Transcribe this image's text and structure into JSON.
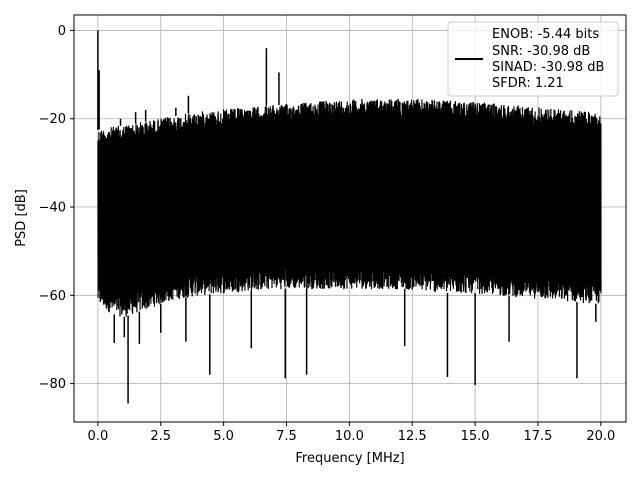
{
  "chart_data": {
    "type": "line",
    "xlabel": "Frequency [MHz]",
    "ylabel": "PSD [dB]",
    "xlim": [
      -0.95,
      21.0
    ],
    "ylim": [
      -88.7,
      3.5
    ],
    "grid": true,
    "legend_position": "top-right",
    "x_ticks": [
      0.0,
      2.5,
      5.0,
      7.5,
      10.0,
      12.5,
      15.0,
      17.5,
      20.0
    ],
    "x_tick_labels": [
      "0.0",
      "2.5",
      "5.0",
      "7.5",
      "10.0",
      "12.5",
      "15.0",
      "17.5",
      "20.0"
    ],
    "y_ticks": [
      0,
      -20,
      -40,
      -60,
      -80
    ],
    "y_tick_labels": [
      "0",
      "−20",
      "−40",
      "−60",
      "−80"
    ],
    "legend": {
      "lines": [
        "ENOB: -5.44 bits",
        "SNR: -30.98 dB",
        "SINAD: -30.98 dB",
        "SFDR: 1.21"
      ],
      "line_color": "#000000"
    },
    "series": [
      {
        "color": "#000000",
        "band": {
          "x": [
            0.0,
            0.5,
            1.0,
            1.5,
            2.0,
            2.5,
            3.0,
            4.0,
            5.0,
            6.0,
            7.0,
            8.0,
            9.0,
            10.0,
            11.0,
            12.0,
            13.0,
            14.0,
            15.0,
            16.0,
            17.0,
            18.0,
            19.0,
            20.0
          ],
          "upper": [
            -22.5,
            -22.0,
            -21.5,
            -21.0,
            -20.5,
            -20.0,
            -19.5,
            -18.5,
            -18.0,
            -17.5,
            -17.0,
            -16.5,
            -16.0,
            -15.7,
            -15.5,
            -15.5,
            -15.7,
            -16.0,
            -16.3,
            -16.7,
            -17.2,
            -17.7,
            -18.2,
            -18.8
          ],
          "lower": [
            -62.0,
            -64.0,
            -65.0,
            -64.0,
            -63.0,
            -62.0,
            -61.0,
            -60.0,
            -59.5,
            -59.0,
            -58.5,
            -58.5,
            -58.5,
            -58.5,
            -58.5,
            -58.5,
            -59.0,
            -59.5,
            -59.5,
            -60.0,
            -60.5,
            -61.0,
            -61.5,
            -62.0
          ]
        },
        "spikes": [
          {
            "x": 0.0,
            "y": 0.0
          },
          {
            "x": 0.05,
            "y": -9.0
          },
          {
            "x": 0.9,
            "y": -20.0
          },
          {
            "x": 1.5,
            "y": -18.5
          },
          {
            "x": 1.9,
            "y": -18.0
          },
          {
            "x": 3.1,
            "y": -17.5
          },
          {
            "x": 3.6,
            "y": -14.8
          },
          {
            "x": 6.7,
            "y": -4.0
          },
          {
            "x": 7.2,
            "y": -9.5
          },
          {
            "x": 0.65,
            "y": -70.8
          },
          {
            "x": 1.05,
            "y": -69.5
          },
          {
            "x": 1.2,
            "y": -84.5
          },
          {
            "x": 1.65,
            "y": -71.0
          },
          {
            "x": 2.5,
            "y": -68.5
          },
          {
            "x": 3.5,
            "y": -70.5
          },
          {
            "x": 4.45,
            "y": -78.0
          },
          {
            "x": 6.1,
            "y": -72.0
          },
          {
            "x": 7.45,
            "y": -78.8
          },
          {
            "x": 8.3,
            "y": -78.0
          },
          {
            "x": 12.2,
            "y": -71.5
          },
          {
            "x": 13.9,
            "y": -78.5
          },
          {
            "x": 15.0,
            "y": -80.3
          },
          {
            "x": 16.35,
            "y": -70.5
          },
          {
            "x": 19.05,
            "y": -78.8
          },
          {
            "x": 19.8,
            "y": -66.0
          }
        ]
      }
    ]
  }
}
